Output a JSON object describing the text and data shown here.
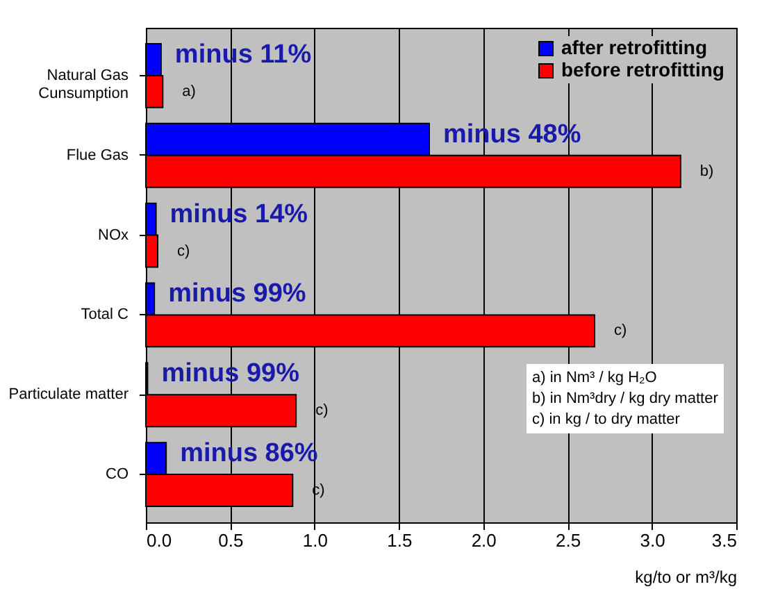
{
  "chart_data": {
    "type": "bar",
    "orientation": "horizontal",
    "categories": [
      "Natural Gas\nCunsumption",
      "Flue Gas",
      "NOx",
      "Total C",
      "Particulate matter",
      "CO"
    ],
    "series": [
      {
        "name": "after retrofitting",
        "color": "#0000ff",
        "values": [
          0.09,
          1.68,
          0.06,
          0.05,
          0.01,
          0.12
        ]
      },
      {
        "name": "before retrofitting",
        "color": "#ff0000",
        "values": [
          0.1,
          3.17,
          0.07,
          2.66,
          0.89,
          0.87
        ]
      }
    ],
    "xlabel": "kg/to or m³/kg",
    "xlim": [
      0,
      3.5
    ],
    "xticks": [
      {
        "value": 0,
        "label": "0.0"
      },
      {
        "value": 0.5,
        "label": "0.5"
      },
      {
        "value": 1,
        "label": "1.0"
      },
      {
        "value": 1.5,
        "label": "1.5"
      },
      {
        "value": 2,
        "label": "2.0"
      },
      {
        "value": 2.5,
        "label": "2.5"
      },
      {
        "value": 3,
        "label": "3.0"
      },
      {
        "value": 3.5,
        "label": "3.5"
      }
    ],
    "grid": "x",
    "legend": "top right",
    "annotations": [
      "minus 11%",
      "minus 48%",
      "minus 14%",
      "minus 99%",
      "minus 99%",
      "minus 86%",
      "a)",
      "b)",
      "c)",
      "c)",
      "c)",
      "c)",
      "a) in Nm³ / kg H₂O",
      "b) in Nm³dry / kg dry matter",
      "c) in kg / to dry matter"
    ]
  }
}
